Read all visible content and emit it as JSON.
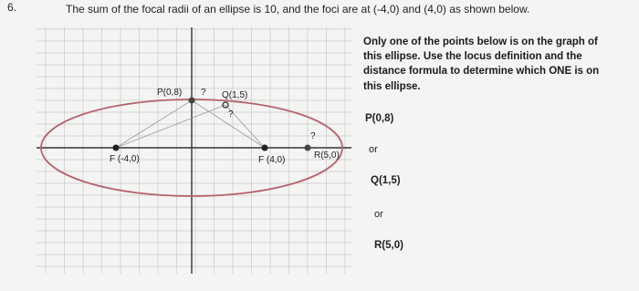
{
  "question": {
    "number": "6.",
    "text": "The sum of the focal radii of an ellipse is 10, and the foci are at (-4,0) and (4,0) as shown below."
  },
  "graph": {
    "labels": {
      "p": "P(0,8)",
      "p_mark": "?",
      "q": "Q(1,5)",
      "q_mark": "?",
      "f1": "F (-4,0)",
      "f2": "F (4,0)",
      "r": "R(5,0)",
      "r_mark": "?"
    }
  },
  "instructions": {
    "line1": [
      "Only ",
      "one",
      " of the points below is on the graph of"
    ],
    "line2": "this ellipse. Use the locus definition and the",
    "line3": "distance formula to determine which ONE is on",
    "line4": "this ellipse."
  },
  "options": {
    "first": "P(0,8)",
    "or1": "or",
    "second": "Q(1,5)",
    "or2": "or",
    "third": "R(5,0)"
  }
}
